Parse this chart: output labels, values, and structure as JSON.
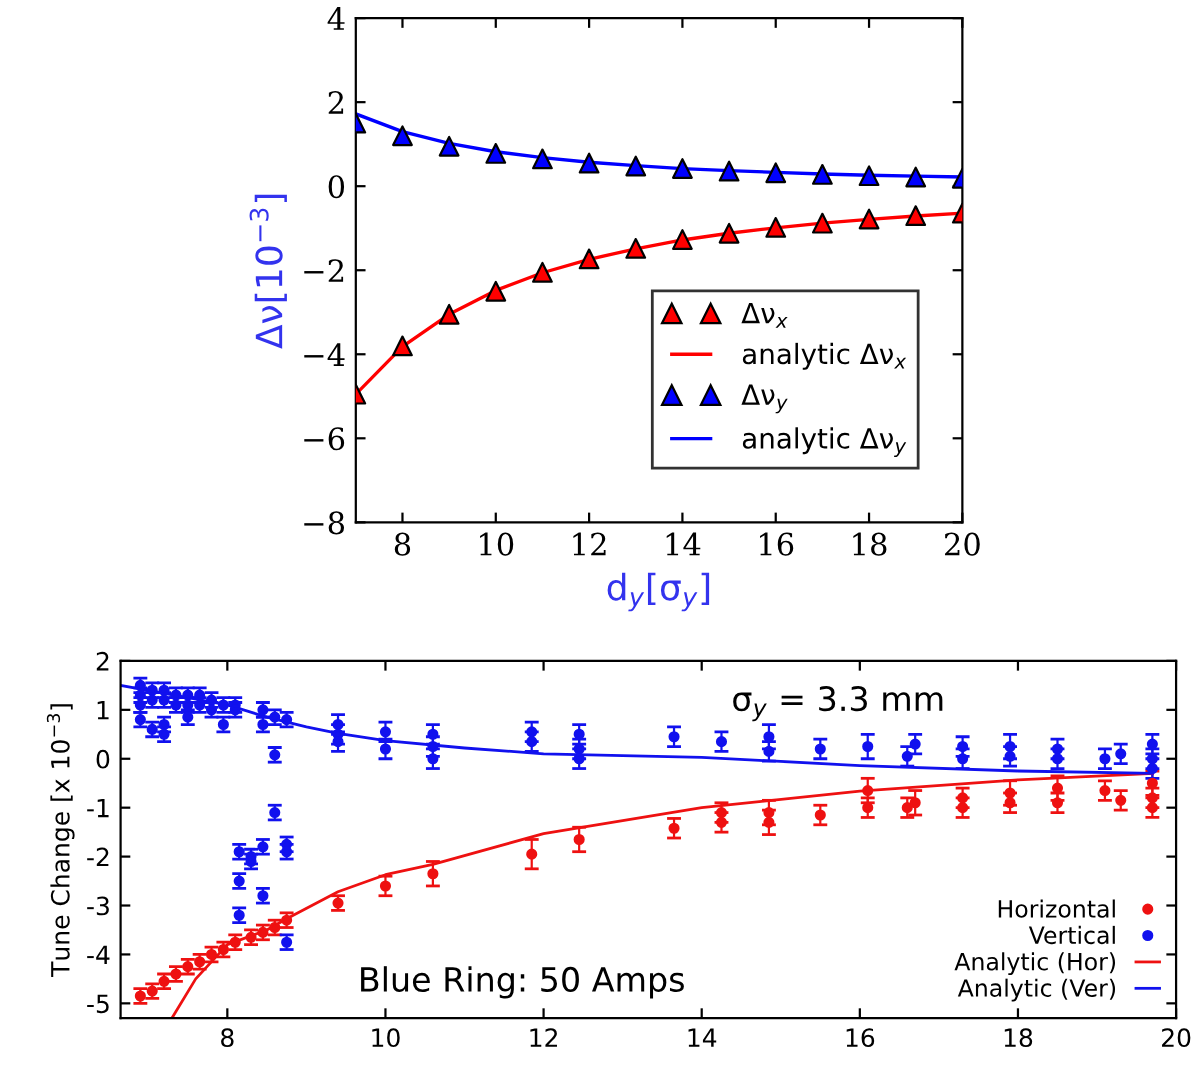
{
  "chart_data": [
    {
      "type": "scatter",
      "xlabel": "d$_{y}$[σ$_{y}$]",
      "ylabel": "Δν[10$^{−3}$]",
      "xlim": [
        7,
        20
      ],
      "ylim": [
        -8,
        4
      ],
      "xticks": [
        8,
        10,
        12,
        14,
        16,
        18,
        20
      ],
      "yticks": [
        -8,
        -6,
        -4,
        -2,
        0,
        2,
        4
      ],
      "legend": "bottom right",
      "grid": false,
      "x": [
        7,
        8,
        9,
        10,
        11,
        12,
        13,
        14,
        15,
        16,
        17,
        18,
        19,
        20
      ],
      "series": [
        {
          "name": "Δν$_{x}$",
          "marker": "triangle",
          "color": "#ff0000",
          "values": [
            -4.95,
            -3.8,
            -3.05,
            -2.5,
            -2.05,
            -1.73,
            -1.48,
            -1.27,
            -1.12,
            -0.98,
            -0.88,
            -0.78,
            -0.7,
            -0.64
          ]
        },
        {
          "name": "analytic Δν$_{x}$",
          "type": "line",
          "color": "#ff0000",
          "values": [
            -4.95,
            -3.82,
            -3.05,
            -2.48,
            -2.06,
            -1.74,
            -1.49,
            -1.28,
            -1.12,
            -0.99,
            -0.88,
            -0.79,
            -0.71,
            -0.64
          ]
        },
        {
          "name": "Δν$_{y}$",
          "marker": "triangle",
          "color": "#0000ff",
          "values": [
            1.5,
            1.2,
            0.95,
            0.78,
            0.65,
            0.55,
            0.48,
            0.42,
            0.36,
            0.32,
            0.28,
            0.25,
            0.22,
            0.19
          ]
        },
        {
          "name": "analytic Δν$_{y}$",
          "type": "line",
          "color": "#0000ff",
          "values": [
            1.72,
            1.3,
            1.02,
            0.82,
            0.68,
            0.57,
            0.49,
            0.42,
            0.37,
            0.33,
            0.29,
            0.26,
            0.24,
            0.22
          ]
        }
      ]
    },
    {
      "type": "scatter",
      "ylabel": "Tune Change [x 10$^{−3}$]",
      "xlim": [
        6.65,
        20
      ],
      "ylim": [
        -5.3,
        2
      ],
      "xticks": [
        8,
        10,
        12,
        14,
        16,
        18,
        20
      ],
      "yticks": [
        -5,
        -4,
        -3,
        -2,
        -1,
        0,
        1,
        2
      ],
      "legend": "bottom right",
      "grid": false,
      "annotations": [
        "σ$_{y}$ = 3.3 mm",
        "Blue Ring: 50 Amps"
      ],
      "series": [
        {
          "name": "Horizontal",
          "marker": "circle",
          "color": "#ee1111",
          "x": [
            6.9,
            7.05,
            7.2,
            7.35,
            7.5,
            7.65,
            7.8,
            7.95,
            8.1,
            8.3,
            8.45,
            8.6,
            8.75,
            9.4,
            10.0,
            10.6,
            11.85,
            12.45,
            13.65,
            14.25,
            14.25,
            14.85,
            14.85,
            15.5,
            16.1,
            16.1,
            16.6,
            16.7,
            17.3,
            17.3,
            17.9,
            17.9,
            18.5,
            18.5,
            19.1,
            19.3,
            19.7,
            19.7,
            19.7
          ],
          "values": [
            -4.85,
            -4.75,
            -4.55,
            -4.4,
            -4.25,
            -4.15,
            -4.0,
            -3.9,
            -3.75,
            -3.65,
            -3.55,
            -3.45,
            -3.3,
            -2.95,
            -2.6,
            -2.35,
            -1.95,
            -1.65,
            -1.42,
            -1.3,
            -1.1,
            -1.3,
            -1.1,
            -1.15,
            -0.65,
            -1.0,
            -1.0,
            -0.9,
            -1.0,
            -0.8,
            -0.7,
            -0.9,
            -0.6,
            -0.9,
            -0.65,
            -0.85,
            -0.5,
            -0.8,
            -1.0
          ],
          "errors": [
            0.15,
            0.15,
            0.15,
            0.15,
            0.15,
            0.15,
            0.15,
            0.15,
            0.15,
            0.15,
            0.15,
            0.15,
            0.15,
            0.15,
            0.2,
            0.25,
            0.3,
            0.25,
            0.2,
            0.2,
            0.2,
            0.25,
            0.25,
            0.2,
            0.25,
            0.2,
            0.2,
            0.25,
            0.2,
            0.2,
            0.25,
            0.2,
            0.25,
            0.2,
            0.2,
            0.2,
            0.25,
            0.2,
            0.2
          ]
        },
        {
          "name": "Vertical",
          "marker": "circle",
          "color": "#1111ee",
          "x": [
            6.9,
            6.9,
            6.9,
            6.9,
            7.05,
            7.05,
            7.05,
            7.2,
            7.2,
            7.2,
            7.2,
            7.35,
            7.35,
            7.5,
            7.5,
            7.5,
            7.65,
            7.65,
            7.8,
            7.8,
            7.95,
            7.95,
            8.1,
            8.1,
            8.15,
            8.15,
            8.15,
            8.3,
            8.3,
            8.45,
            8.45,
            8.45,
            8.45,
            8.6,
            8.6,
            8.6,
            8.75,
            8.75,
            8.75,
            8.75,
            9.4,
            9.4,
            9.4,
            10.0,
            10.0,
            10.6,
            10.6,
            10.6,
            11.85,
            11.85,
            12.45,
            12.45,
            12.45,
            13.65,
            14.25,
            14.85,
            14.85,
            15.5,
            16.1,
            16.6,
            16.7,
            17.3,
            17.3,
            17.9,
            17.9,
            18.5,
            18.5,
            19.1,
            19.3,
            19.7,
            19.7,
            19.7
          ],
          "values": [
            1.5,
            1.3,
            1.1,
            0.8,
            1.4,
            1.2,
            0.6,
            1.4,
            1.2,
            0.7,
            0.5,
            1.3,
            1.1,
            1.3,
            1.1,
            0.85,
            1.3,
            1.1,
            1.2,
            1.0,
            1.1,
            0.7,
            1.1,
            1.0,
            -1.9,
            -2.5,
            -3.2,
            -2.0,
            -2.1,
            1.0,
            0.7,
            -1.8,
            -2.8,
            0.85,
            0.08,
            -1.1,
            0.8,
            -1.75,
            -1.9,
            -3.75,
            0.7,
            0.5,
            0.35,
            0.55,
            0.2,
            0.5,
            0.25,
            0.0,
            0.55,
            0.35,
            0.5,
            0.2,
            0.0,
            0.45,
            0.35,
            0.45,
            0.15,
            0.2,
            0.25,
            0.05,
            0.3,
            0.25,
            0.0,
            0.25,
            0.05,
            0.2,
            0.0,
            0.0,
            0.1,
            0.3,
            0.0,
            -0.2
          ],
          "errors": [
            0.15,
            0.15,
            0.15,
            0.15,
            0.15,
            0.15,
            0.15,
            0.15,
            0.15,
            0.15,
            0.15,
            0.15,
            0.15,
            0.15,
            0.15,
            0.15,
            0.15,
            0.15,
            0.15,
            0.15,
            0.15,
            0.15,
            0.15,
            0.15,
            0.15,
            0.15,
            0.15,
            0.15,
            0.15,
            0.15,
            0.15,
            0.15,
            0.15,
            0.15,
            0.15,
            0.15,
            0.15,
            0.15,
            0.15,
            0.15,
            0.2,
            0.2,
            0.2,
            0.2,
            0.2,
            0.2,
            0.2,
            0.2,
            0.2,
            0.2,
            0.2,
            0.2,
            0.2,
            0.2,
            0.2,
            0.25,
            0.2,
            0.2,
            0.25,
            0.2,
            0.2,
            0.2,
            0.2,
            0.25,
            0.2,
            0.2,
            0.2,
            0.2,
            0.2,
            0.2,
            0.2,
            0.2
          ]
        },
        {
          "name": "Analytic (Hor)",
          "type": "line",
          "color": "#ee1111",
          "x": [
            7.3,
            7.6,
            8,
            8.5,
            8.75,
            9.4,
            10,
            10.6,
            12,
            14,
            16,
            18,
            19.7
          ],
          "values": [
            -5.3,
            -4.5,
            -3.8,
            -3.5,
            -3.27,
            -2.72,
            -2.37,
            -2.16,
            -1.53,
            -1.0,
            -0.66,
            -0.43,
            -0.3
          ]
        },
        {
          "name": "Analytic (Ver)",
          "type": "line",
          "color": "#1111ee",
          "x": [
            6.65,
            7.5,
            8,
            8.5,
            9,
            9.4,
            10,
            11,
            12,
            14,
            16,
            18,
            19.7
          ],
          "values": [
            1.5,
            1.25,
            1.1,
            0.85,
            0.65,
            0.52,
            0.37,
            0.22,
            0.1,
            0.03,
            -0.14,
            -0.25,
            -0.3
          ]
        }
      ]
    }
  ]
}
